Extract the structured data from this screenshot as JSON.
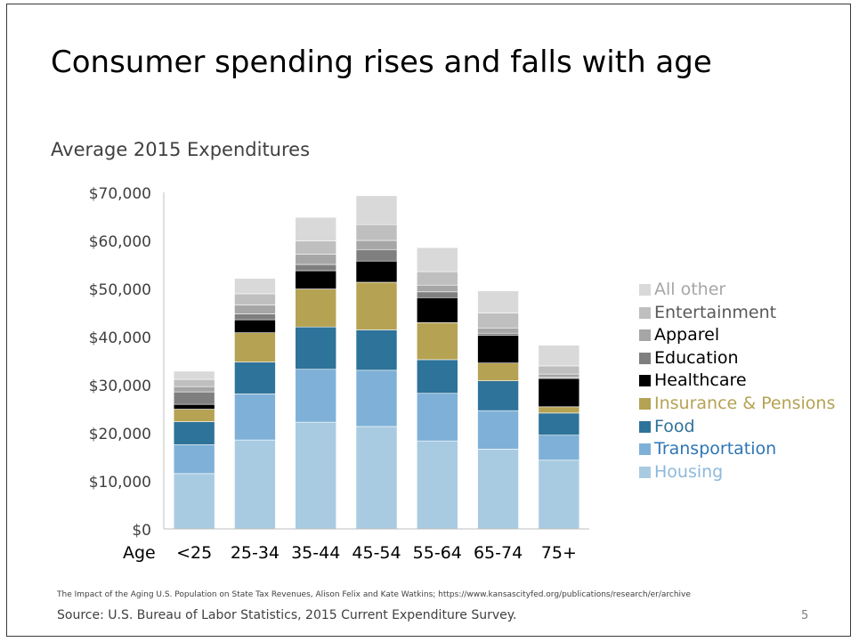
{
  "slide": {
    "title": "Consumer spending rises and falls with age",
    "citation": "The Impact of the Aging U.S. Population on State Tax Revenues,  Alison Felix and Kate Watkins; https://www.kansascityfed.org/publications/research/er/archive",
    "source": "Source: U.S. Bureau of Labor Statistics, 2015 Current Expenditure Survey.",
    "page_number": "5"
  },
  "chart_data": {
    "type": "bar",
    "stacked": true,
    "title": "Average 2015 Expenditures",
    "xlabel": "Age",
    "ylabel": "",
    "ylim": [
      0,
      70000
    ],
    "yticks": [
      "$0",
      "$10,000",
      "$20,000",
      "$30,000",
      "$40,000",
      "$50,000",
      "$60,000",
      "$70,000"
    ],
    "categories": [
      "<25",
      "25-34",
      "35-44",
      "45-54",
      "55-64",
      "65-74",
      "75+"
    ],
    "legend_position": "right",
    "grid": false,
    "series": [
      {
        "name": "Housing",
        "color": "#a9cbe2",
        "label_color": "#8db9dc",
        "values": [
          11500,
          18500,
          22200,
          21300,
          18300,
          16600,
          14300
        ]
      },
      {
        "name": "Transportation",
        "color": "#7fb1d8",
        "label_color": "#2e75b6",
        "values": [
          6000,
          9600,
          11000,
          11700,
          9900,
          8000,
          5200
        ]
      },
      {
        "name": "Food",
        "color": "#2e7399",
        "label_color": "#2e7399",
        "values": [
          4800,
          6600,
          8800,
          8400,
          7000,
          6200,
          4600
        ]
      },
      {
        "name": "Insurance & Pensions",
        "color": "#b5a253",
        "label_color": "#b5a253",
        "values": [
          2600,
          6100,
          7900,
          9900,
          7700,
          3700,
          1300
        ]
      },
      {
        "name": "Healthcare",
        "color": "#000000",
        "label_color": "#000000",
        "values": [
          1000,
          2700,
          3800,
          4400,
          5200,
          5800,
          5900
        ]
      },
      {
        "name": "Education",
        "color": "#7f7f7f",
        "label_color": "#000000",
        "values": [
          2600,
          1200,
          1300,
          2400,
          1200,
          400,
          200
        ]
      },
      {
        "name": "Apparel",
        "color": "#a6a6a6",
        "label_color": "#000000",
        "values": [
          1100,
          1900,
          2100,
          1900,
          1400,
          1100,
          700
        ]
      },
      {
        "name": "Entertainment",
        "color": "#bfbfbf",
        "label_color": "#595959",
        "values": [
          1500,
          2300,
          2800,
          3300,
          2800,
          3100,
          1700
        ]
      },
      {
        "name": "All other",
        "color": "#d9d9d9",
        "label_color": "#a6a6a6",
        "values": [
          1700,
          3200,
          4900,
          6000,
          5000,
          4600,
          4300
        ]
      }
    ]
  }
}
